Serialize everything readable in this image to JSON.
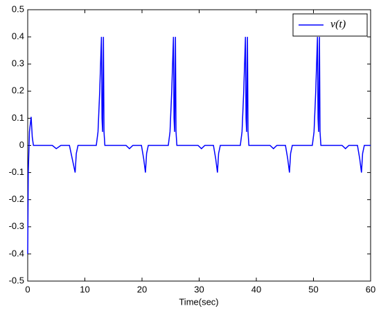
{
  "chart_data": {
    "type": "line",
    "xlabel": "Time(sec)",
    "x": [
      0,
      0.1,
      0.3,
      0.6,
      0.8,
      1.0,
      4.3,
      5.0,
      5.8,
      7.3,
      7.8,
      8.3,
      8.5,
      8.8,
      12.0,
      12.3,
      12.6,
      12.9,
      13.0,
      13.1,
      13.25,
      13.35,
      13.5,
      17.2,
      17.8,
      18.4,
      19.9,
      20.3,
      20.6,
      20.8,
      21.1,
      24.6,
      24.9,
      25.2,
      25.5,
      25.6,
      25.7,
      25.85,
      25.95,
      26.1,
      29.8,
      30.4,
      31.0,
      32.5,
      32.9,
      33.2,
      33.4,
      33.7,
      37.2,
      37.5,
      37.8,
      38.1,
      38.2,
      38.3,
      38.45,
      38.55,
      38.7,
      42.4,
      43.0,
      43.6,
      45.1,
      45.5,
      45.8,
      46.0,
      46.3,
      49.8,
      50.1,
      50.4,
      50.7,
      50.8,
      50.9,
      51.05,
      51.15,
      51.3,
      55.0,
      55.6,
      56.2,
      57.7,
      58.1,
      58.4,
      58.6,
      58.9,
      60
    ],
    "series": [
      {
        "name": "v(t)",
        "color": "#0000ff",
        "values": [
          -0.4,
          -0.1,
          0.05,
          0.105,
          0.03,
          0,
          0,
          -0.012,
          0,
          0,
          -0.05,
          -0.1,
          -0.03,
          0,
          0,
          0.05,
          0.2,
          0.4,
          0.1,
          0.05,
          0.4,
          0.05,
          0,
          0,
          -0.012,
          0,
          0,
          -0.05,
          -0.1,
          -0.03,
          0,
          0,
          0.05,
          0.2,
          0.4,
          0.1,
          0.05,
          0.4,
          0.05,
          0,
          0,
          -0.012,
          0,
          0,
          -0.05,
          -0.1,
          -0.03,
          0,
          0,
          0.05,
          0.2,
          0.4,
          0.1,
          0.05,
          0.4,
          0.05,
          0,
          0,
          -0.012,
          0,
          0,
          -0.05,
          -0.1,
          -0.03,
          0,
          0,
          0.05,
          0.2,
          0.4,
          0.1,
          0.05,
          0.4,
          0.05,
          0,
          0,
          -0.012,
          0,
          0,
          -0.05,
          -0.1,
          -0.03,
          0,
          0
        ]
      }
    ],
    "xlim": [
      0,
      60
    ],
    "xticks": [
      0,
      10,
      20,
      30,
      40,
      50,
      60
    ],
    "ylim": [
      -0.5,
      0.5
    ],
    "yticks": [
      -0.5,
      -0.4,
      -0.3,
      -0.2,
      -0.1,
      0,
      0.1,
      0.2,
      0.3,
      0.4,
      0.5
    ],
    "legend": "upper right"
  }
}
